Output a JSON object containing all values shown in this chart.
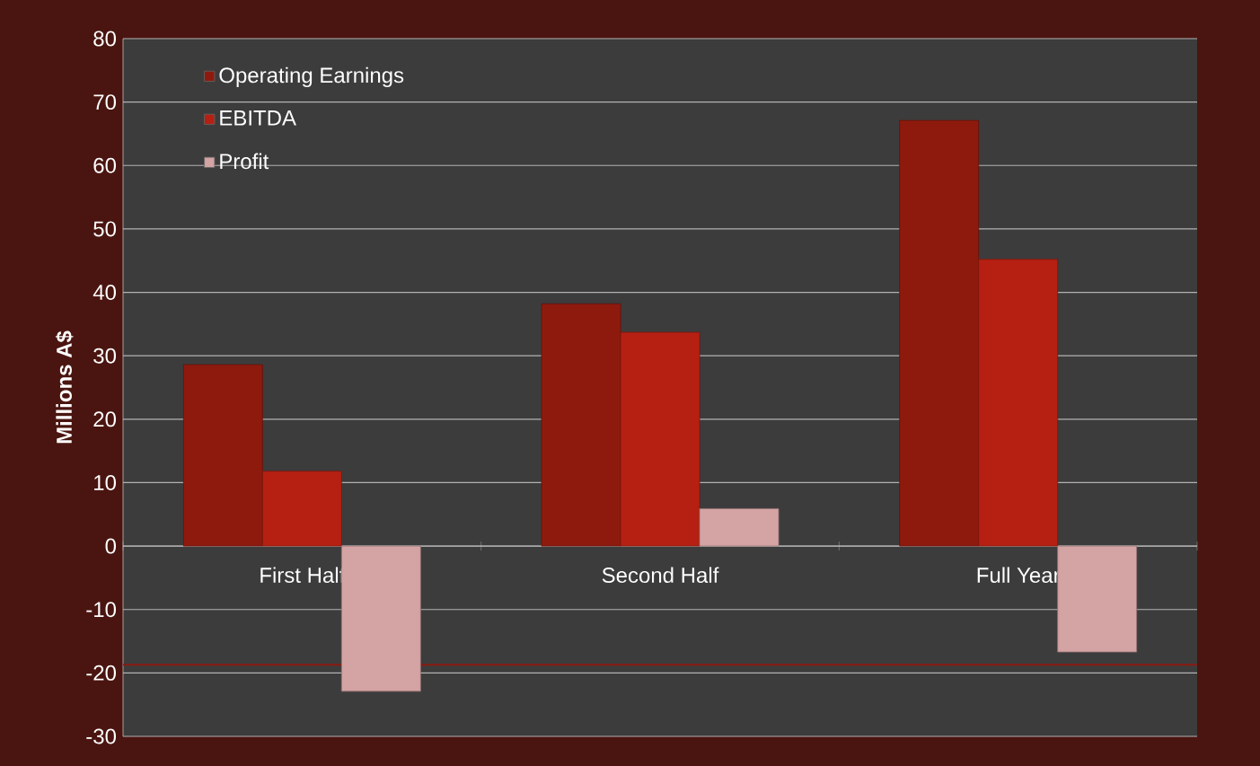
{
  "chart_data": {
    "type": "bar",
    "ylabel": "Millions A$",
    "categories": [
      "First Half",
      "Second Half",
      "Full Year"
    ],
    "series": [
      {
        "name": "Operating Earnings",
        "color": "#8e1a0e",
        "values": [
          28.6,
          38.2,
          67.1
        ]
      },
      {
        "name": "EBITDA",
        "color": "#b52012",
        "values": [
          11.8,
          33.7,
          45.2
        ]
      },
      {
        "name": "Profit",
        "color": "#d4a3a3",
        "values": [
          -22.9,
          5.9,
          -16.7
        ]
      }
    ],
    "ylim": [
      -30,
      80
    ],
    "yticks": [
      -30,
      -20,
      -10,
      0,
      10,
      20,
      30,
      40,
      50,
      60,
      70,
      80
    ],
    "grid": "y",
    "legend": "top left",
    "ref_lines": [
      {
        "axis": "y",
        "value": -18.7,
        "color": "#8b1a10"
      }
    ]
  }
}
